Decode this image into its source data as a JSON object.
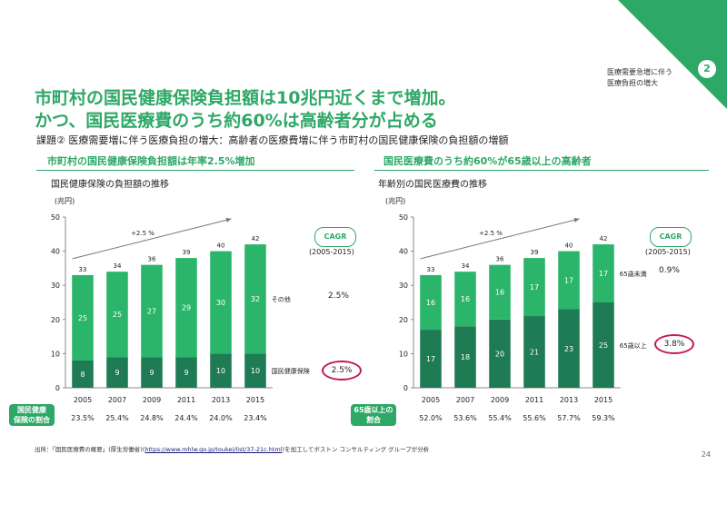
{
  "header": {
    "section_tag_line1": "医療需要急増に伴う",
    "section_tag_line2": "医療負担の増大",
    "page_badge": "2",
    "title_line1": "市町村の国民健康保険負担額は10兆円近くまで増加。",
    "title_line2": "かつ、国民医療費のうち約60%は高齢者分が占める",
    "subtitle": "課題② 医療需要増に伴う医療負担の増大：高齢者の医療費増に伴う市町村の国民健康保険の負担額の増額"
  },
  "left_panel": {
    "heading": "市町村の国民健康保険負担額は年率2.5%増加",
    "subheading": "国民健康保険の負担額の推移",
    "unit": "(兆円)",
    "cagr_label": "CAGR",
    "cagr_period": "(2005-2015)",
    "cagr_top": "2.5%",
    "cagr_bottom": "2.5%",
    "share_tag_line1": "国民健康",
    "share_tag_line2": "保険の割合"
  },
  "right_panel": {
    "heading": "国民医療費のうち約60%が65歳以上の高齢者",
    "subheading": "年齢別の国民医療費の推移",
    "unit": "(兆円)",
    "cagr_label": "CAGR",
    "cagr_period": "(2005-2015)",
    "cagr_top": "0.9%",
    "cagr_bottom": "3.8%",
    "share_tag_line1": "65歳以上の",
    "share_tag_line2": "割合"
  },
  "footer": {
    "source_prefix": "出所：「国民医療費の概要」(厚生労働省)(",
    "source_link": "https://www.mhlw.go.jp/toukei/list/37-21c.html",
    "source_suffix": ")を加工してボストン コンサルティング グループが分析",
    "page_number": "24"
  },
  "colors": {
    "accent": "#2ea866",
    "dark_green": "#1e7b54",
    "light_green": "#2bb56b",
    "highlight_ring": "#c2185b"
  },
  "chart_data": [
    {
      "type": "bar",
      "stacked": true,
      "categories": [
        "2005",
        "2007",
        "2009",
        "2011",
        "2013",
        "2015"
      ],
      "series": [
        {
          "name": "国民健康保険",
          "values": [
            8,
            9,
            9,
            9,
            10,
            10
          ],
          "color": "#1e7b54"
        },
        {
          "name": "その他",
          "values": [
            25,
            25,
            27,
            29,
            30,
            32
          ],
          "color": "#2bb56b"
        }
      ],
      "totals": [
        33,
        34,
        36,
        39,
        40,
        42
      ],
      "shares": [
        "23.5%",
        "25.4%",
        "24.8%",
        "24.4%",
        "24.0%",
        "23.4%"
      ],
      "ylim": [
        0,
        50
      ],
      "yticks": [
        0,
        10,
        20,
        30,
        40,
        50
      ],
      "trend_label": "+2.5 %"
    },
    {
      "type": "bar",
      "stacked": true,
      "categories": [
        "2005",
        "2007",
        "2009",
        "2011",
        "2013",
        "2015"
      ],
      "series": [
        {
          "name": "65歳以上",
          "values": [
            17,
            18,
            20,
            21,
            23,
            25
          ],
          "color": "#1e7b54"
        },
        {
          "name": "65歳未満",
          "values": [
            16,
            16,
            16,
            17,
            17,
            17
          ],
          "color": "#2bb56b"
        }
      ],
      "totals": [
        33,
        34,
        36,
        39,
        40,
        42
      ],
      "shares": [
        "52.0%",
        "53.6%",
        "55.4%",
        "55.6%",
        "57.7%",
        "59.3%"
      ],
      "ylim": [
        0,
        50
      ],
      "yticks": [
        0,
        10,
        20,
        30,
        40,
        50
      ],
      "trend_label": "+2.5 %"
    }
  ]
}
